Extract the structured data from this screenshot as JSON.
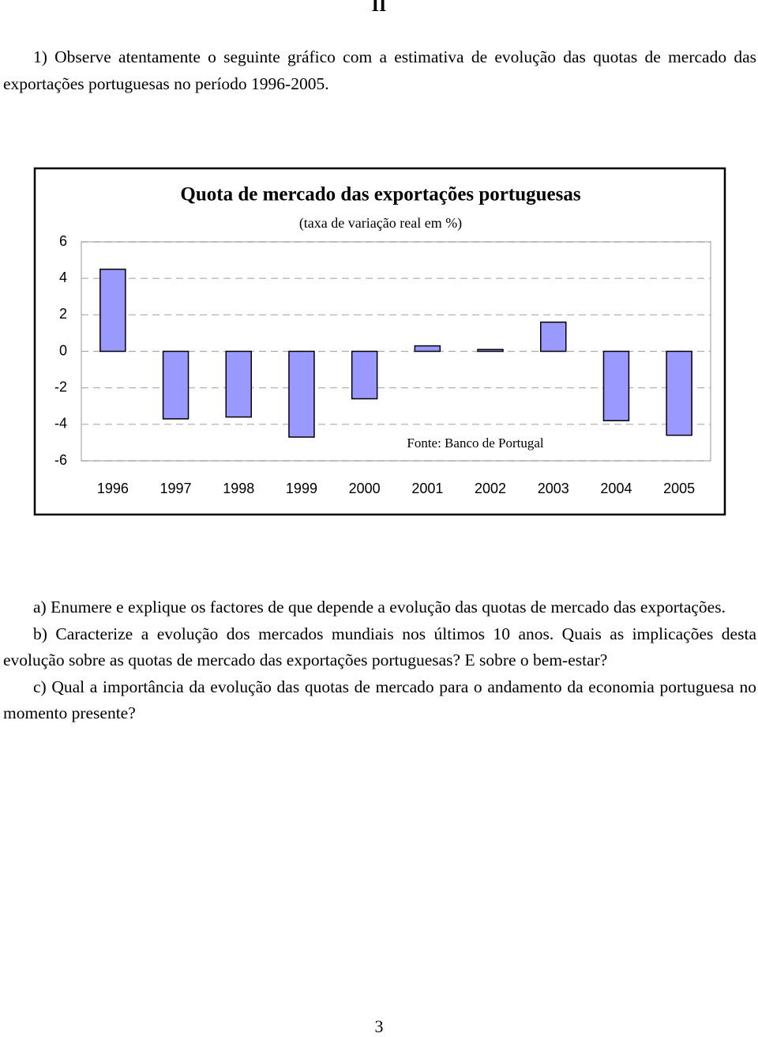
{
  "header": "II",
  "intro": "1) Observe atentamente o seguinte gráfico com a estimativa de evolução das quotas de mercado das exportações portuguesas no período 1996-2005.",
  "chart_data": {
    "type": "bar",
    "title": "Quota de mercado das exportações portuguesas",
    "subtitle": "(taxa de variação real em %)",
    "source": "Fonte: Banco de Portugal",
    "categories": [
      "1996",
      "1997",
      "1998",
      "1999",
      "2000",
      "2001",
      "2002",
      "2003",
      "2004",
      "2005"
    ],
    "values": [
      4.5,
      -3.7,
      -3.6,
      -4.7,
      -2.6,
      0.3,
      0.1,
      1.6,
      -3.8,
      -4.6
    ],
    "color": "#9999ff",
    "ylim": [
      -6,
      6
    ],
    "yticks": [
      6,
      4,
      2,
      0,
      -2,
      -4,
      -6
    ],
    "grid": true
  },
  "questions": [
    "a) Enumere e explique os factores de que depende a evolução das quotas de mercado das exportações.",
    "b) Caracterize a evolução dos mercados mundiais nos últimos 10 anos. Quais as implicações desta evolução sobre as quotas de mercado das exportações portuguesas? E sobre o bem-estar?",
    "c) Qual a importância da evolução das quotas de mercado para o andamento da economia portuguesa no momento presente?"
  ],
  "page_number": "3"
}
